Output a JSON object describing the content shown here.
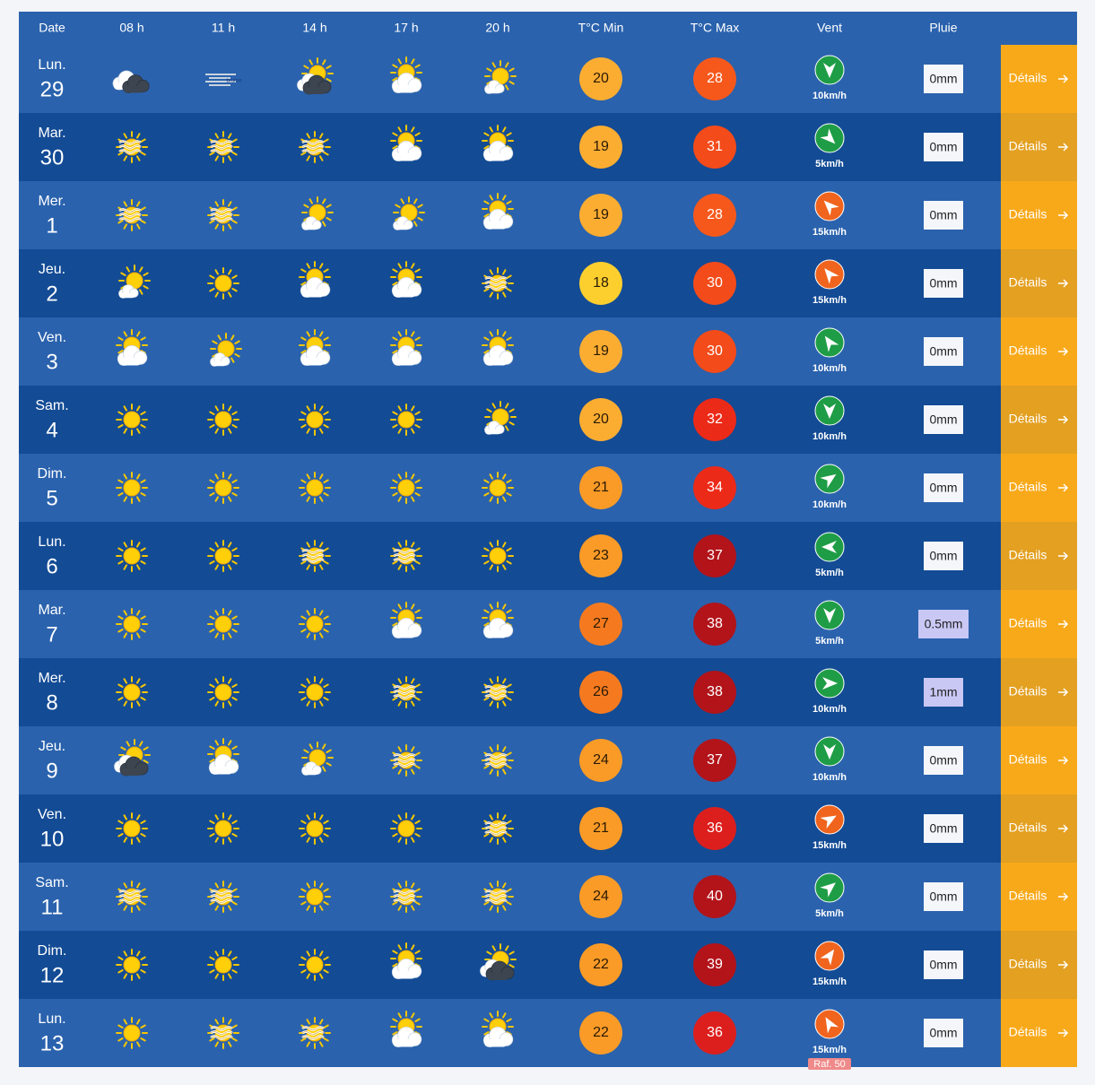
{
  "header": {
    "columns": [
      "Date",
      "08 h",
      "11 h",
      "14 h",
      "17 h",
      "20 h",
      "T°C Min",
      "T°C Max",
      "Vent",
      "Pluie"
    ]
  },
  "rows": [
    {
      "day": "Lun.",
      "date": 29,
      "tmin": 20,
      "tmax": 28,
      "wind": "10km/h",
      "rain": "0mm",
      "details": "Détails",
      "fog_label": "brume"
    },
    {
      "day": "Mar.",
      "date": 30,
      "tmin": 19,
      "tmax": 31,
      "wind": "5km/h",
      "rain": "0mm",
      "details": "Détails"
    },
    {
      "day": "Mer.",
      "date": 1,
      "tmin": 19,
      "tmax": 28,
      "wind": "15km/h",
      "rain": "0mm",
      "details": "Détails"
    },
    {
      "day": "Jeu.",
      "date": 2,
      "tmin": 18,
      "tmax": 30,
      "wind": "15km/h",
      "rain": "0mm",
      "details": "Détails"
    },
    {
      "day": "Ven.",
      "date": 3,
      "tmin": 19,
      "tmax": 30,
      "wind": "10km/h",
      "rain": "0mm",
      "details": "Détails"
    },
    {
      "day": "Sam.",
      "date": 4,
      "tmin": 20,
      "tmax": 32,
      "wind": "10km/h",
      "rain": "0mm",
      "details": "Détails"
    },
    {
      "day": "Dim.",
      "date": 5,
      "tmin": 21,
      "tmax": 34,
      "wind": "10km/h",
      "rain": "0mm",
      "details": "Détails"
    },
    {
      "day": "Lun.",
      "date": 6,
      "tmin": 23,
      "tmax": 37,
      "wind": "5km/h",
      "rain": "0mm",
      "details": "Détails"
    },
    {
      "day": "Mar.",
      "date": 7,
      "tmin": 27,
      "tmax": 38,
      "wind": "5km/h",
      "rain": "0.5mm",
      "details": "Détails"
    },
    {
      "day": "Mer.",
      "date": 8,
      "tmin": 26,
      "tmax": 38,
      "wind": "10km/h",
      "rain": "1mm",
      "details": "Détails"
    },
    {
      "day": "Jeu.",
      "date": 9,
      "tmin": 24,
      "tmax": 37,
      "wind": "10km/h",
      "rain": "0mm",
      "details": "Détails"
    },
    {
      "day": "Ven.",
      "date": 10,
      "tmin": 21,
      "tmax": 36,
      "wind": "15km/h",
      "rain": "0mm",
      "details": "Détails"
    },
    {
      "day": "Sam.",
      "date": 11,
      "tmin": 24,
      "tmax": 40,
      "wind": "5km/h",
      "rain": "0mm",
      "details": "Détails"
    },
    {
      "day": "Dim.",
      "date": 12,
      "tmin": 22,
      "tmax": 39,
      "wind": "15km/h",
      "rain": "0mm",
      "details": "Détails"
    },
    {
      "day": "Lun.",
      "date": 13,
      "tmin": 22,
      "tmax": 36,
      "wind": "15km/h",
      "rain": "0mm",
      "details": "Détails",
      "gust": "Raf. 50"
    }
  ]
}
